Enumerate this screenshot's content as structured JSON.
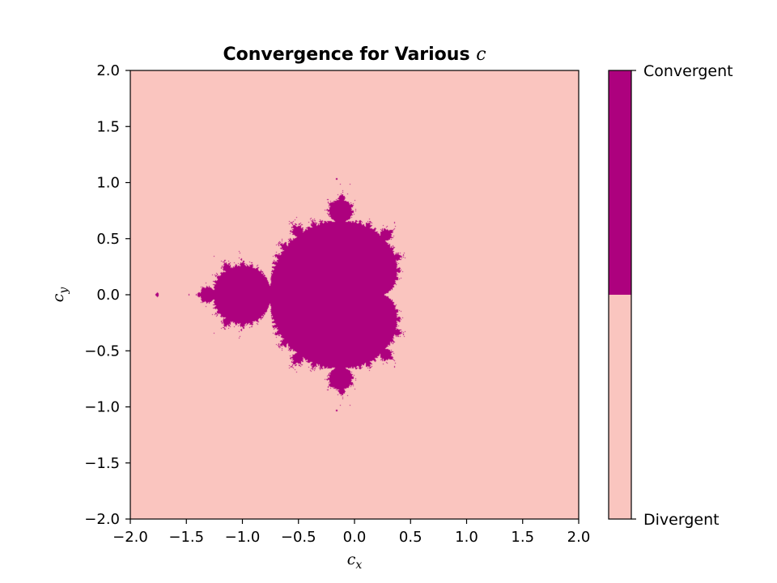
{
  "chart_data": {
    "type": "heatmap",
    "title": "Convergence for Various ",
    "title_var": "c",
    "xlabel_var": "c",
    "xlabel_sub": "x",
    "ylabel_var": "c",
    "ylabel_sub": "y",
    "xlim": [
      -2.0,
      2.0
    ],
    "ylim": [
      -2.0,
      2.0
    ],
    "xticks": [
      -2.0,
      -1.5,
      -1.0,
      -0.5,
      0.0,
      0.5,
      1.0,
      1.5,
      2.0
    ],
    "yticks": [
      -2.0,
      -1.5,
      -1.0,
      -0.5,
      0.0,
      0.5,
      1.0,
      1.5,
      2.0
    ],
    "max_iterations": 40,
    "grid": false,
    "classes": [
      {
        "name": "Divergent",
        "color": "#fac5bf"
      },
      {
        "name": "Convergent",
        "color": "#ad017e"
      }
    ],
    "colorbar": {
      "position": "right",
      "tick_labels": [
        "Convergent",
        "Divergent"
      ]
    }
  }
}
